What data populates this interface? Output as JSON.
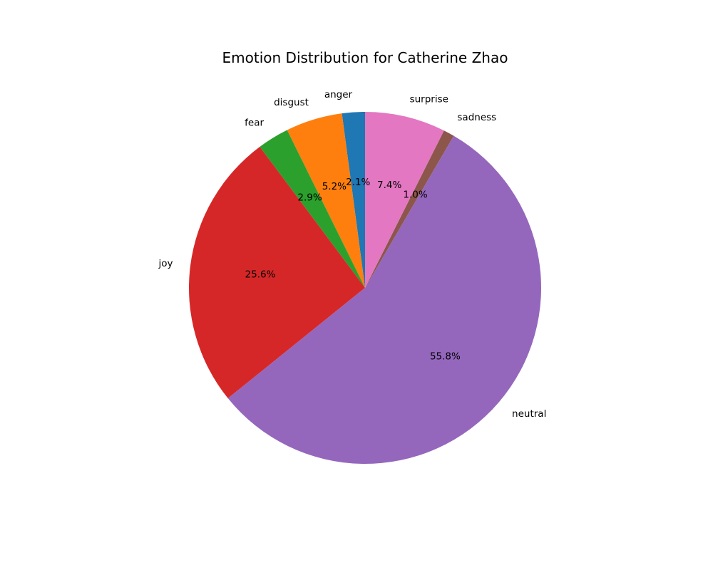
{
  "chart_data": {
    "type": "pie",
    "title": "Emotion Distribution for Catherine Zhao",
    "start_angle_deg": 90,
    "direction": "counterclockwise",
    "slices": [
      {
        "label": "anger",
        "value": 2.1,
        "pct_label": "2.1%",
        "color": "#1f77b4"
      },
      {
        "label": "disgust",
        "value": 5.2,
        "pct_label": "5.2%",
        "color": "#ff7f0e"
      },
      {
        "label": "fear",
        "value": 2.9,
        "pct_label": "2.9%",
        "color": "#2ca02c"
      },
      {
        "label": "joy",
        "value": 25.6,
        "pct_label": "25.6%",
        "color": "#d62728"
      },
      {
        "label": "neutral",
        "value": 55.8,
        "pct_label": "55.8%",
        "color": "#9467bd"
      },
      {
        "label": "sadness",
        "value": 1.0,
        "pct_label": "1.0%",
        "color": "#8c564b"
      },
      {
        "label": "surprise",
        "value": 7.4,
        "pct_label": "7.4%",
        "color": "#e377c2"
      }
    ]
  }
}
